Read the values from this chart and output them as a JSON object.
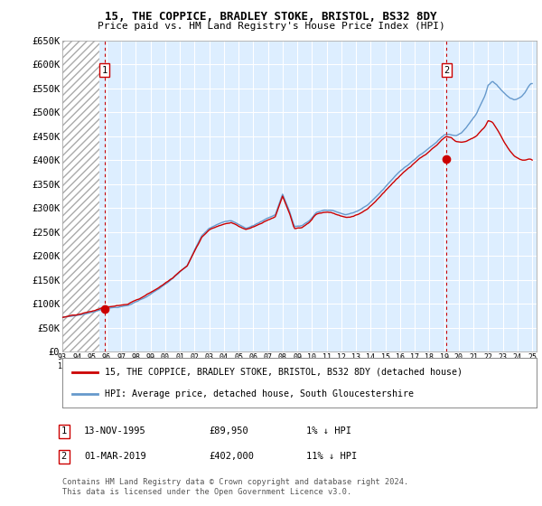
{
  "title1": "15, THE COPPICE, BRADLEY STOKE, BRISTOL, BS32 8DY",
  "title2": "Price paid vs. HM Land Registry's House Price Index (HPI)",
  "legend_line1": "15, THE COPPICE, BRADLEY STOKE, BRISTOL, BS32 8DY (detached house)",
  "legend_line2": "HPI: Average price, detached house, South Gloucestershire",
  "annotation1_date": "13-NOV-1995",
  "annotation1_price": "£89,950",
  "annotation1_hpi": "1% ↓ HPI",
  "annotation2_date": "01-MAR-2019",
  "annotation2_price": "£402,000",
  "annotation2_hpi": "11% ↓ HPI",
  "footer": "Contains HM Land Registry data © Crown copyright and database right 2024.\nThis data is licensed under the Open Government Licence v3.0.",
  "sale1_year": 1995.87,
  "sale1_value": 89950,
  "sale2_year": 2019.17,
  "sale2_value": 402000,
  "hpi_color": "#6699cc",
  "price_color": "#cc0000",
  "vline_color": "#cc0000",
  "background_plot": "#ddeeff",
  "grid_color": "#ffffff",
  "ylim": [
    0,
    650000
  ],
  "xlim_start": 1993.0,
  "xlim_end": 2025.3
}
